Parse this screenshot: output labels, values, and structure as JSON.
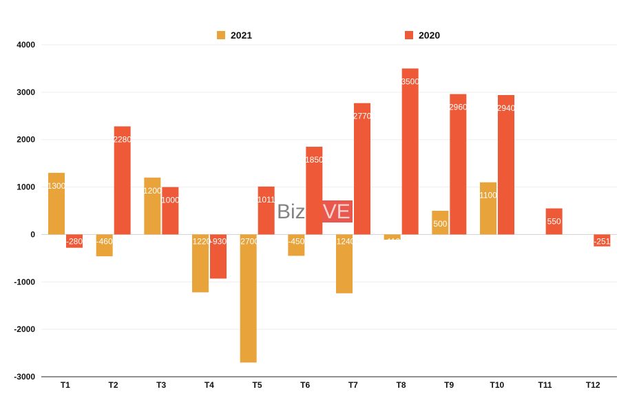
{
  "chart_data": {
    "type": "bar",
    "categories": [
      "T1",
      "T2",
      "T3",
      "T4",
      "T5",
      "T6",
      "T7",
      "T8",
      "T9",
      "T10",
      "T11",
      "T12"
    ],
    "series": [
      {
        "name": "2021",
        "color": "#E8A33A",
        "values": [
          1300,
          -460,
          1200,
          -1220,
          -2700,
          -450,
          -1240,
          -110,
          500,
          1100,
          null,
          null
        ],
        "labels": [
          "1300",
          "-460",
          "1200",
          "-1220",
          "-2700",
          "-450",
          "-1240",
          "-110",
          "500",
          "1100",
          "",
          ""
        ]
      },
      {
        "name": "2020",
        "color": "#EE5A38",
        "values": [
          -280,
          2280,
          1000,
          -930,
          1011,
          1850,
          2770,
          3500,
          2960,
          2940,
          550,
          -251
        ],
        "labels": [
          "-280",
          "2280",
          "1000",
          "-930",
          "1011",
          "1850",
          "2770",
          "3500",
          "2960",
          "2940",
          "550",
          "-251"
        ]
      }
    ],
    "yticks": [
      "4000",
      "3000",
      "2000",
      "1000",
      "0",
      "-1000",
      "-2000",
      "-3000"
    ],
    "ytick_values": [
      4000,
      3000,
      2000,
      1000,
      0,
      -1000,
      -2000,
      -3000
    ],
    "ylim": [
      -3000,
      4000
    ],
    "title": "",
    "xlabel": "",
    "ylabel": "",
    "grid": true,
    "legend_position": "top-center"
  },
  "watermark": {
    "part1": "Biz",
    "part2": "LIVE",
    "color1": "#5a5a5a",
    "color2": "#E63B2E"
  }
}
